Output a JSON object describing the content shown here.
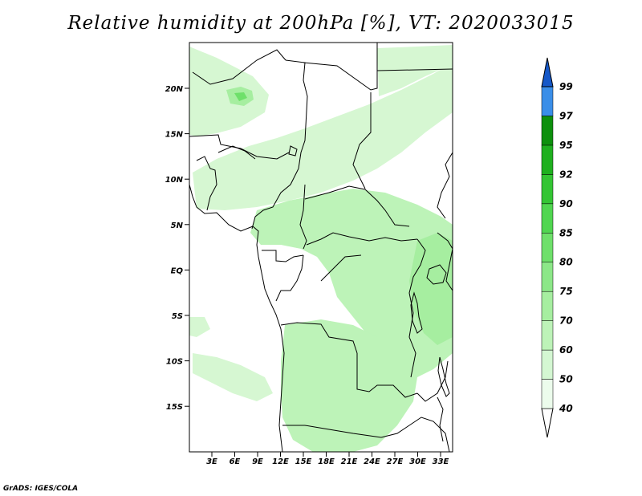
{
  "title": "Relative humidity at 200hPa [%], VT: 2020033015",
  "credit": "GrADS: IGES/COLA",
  "map": {
    "lon_range": [
      0,
      35
    ],
    "lat_range": [
      -20,
      25
    ],
    "lat_ticks": [
      "20N",
      "15N",
      "10N",
      "5N",
      "EQ",
      "5S",
      "10S",
      "15S"
    ],
    "lon_ticks": [
      "3E",
      "6E",
      "9E",
      "12E",
      "15E",
      "18E",
      "21E",
      "24E",
      "27E",
      "30E",
      "33E"
    ]
  },
  "colorbar": {
    "levels": [
      "40",
      "50",
      "60",
      "70",
      "75",
      "80",
      "85",
      "90",
      "92",
      "95",
      "97",
      "99"
    ],
    "colors": [
      "#ecfcec",
      "#d4f7d2",
      "#bdf3b8",
      "#a6eea0",
      "#8ce788",
      "#6ee06a",
      "#50d650",
      "#34c534",
      "#1fb01f",
      "#0d900d",
      "#3a8ee8",
      "#1f6ee0",
      "#1658c8"
    ]
  }
}
